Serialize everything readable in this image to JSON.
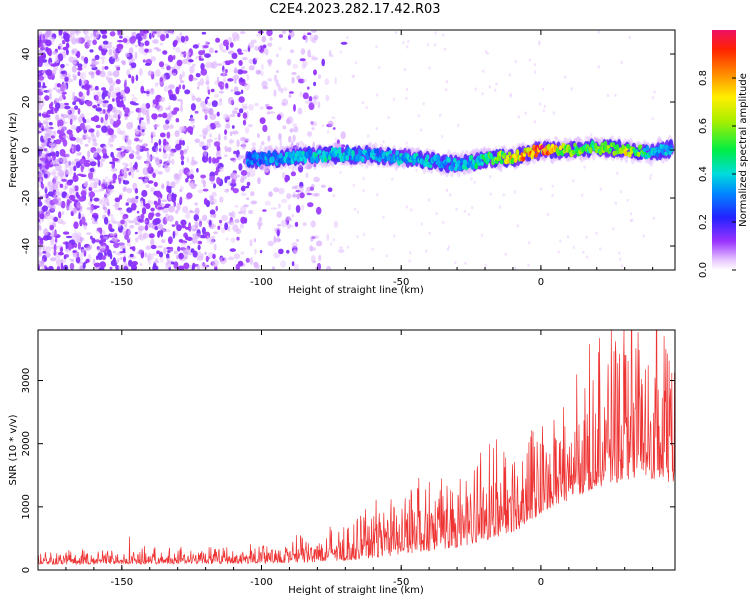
{
  "title": "C2E4.2023.282.17.42.R03",
  "chart_data": [
    {
      "type": "heatmap",
      "xlabel": "Height of straight line (km)",
      "ylabel": "Frequency (Hz)",
      "xlim": [
        -180,
        48
      ],
      "ylim": [
        -50,
        50
      ],
      "xticks": [
        -150,
        -100,
        -50,
        0
      ],
      "yticks": [
        -40,
        -20,
        0,
        20,
        40
      ],
      "colorbar": {
        "label": "Normalized spectral amplitude",
        "range": [
          0.0,
          1.0
        ],
        "ticks": [
          "0.0",
          "0.2",
          "0.4",
          "0.6",
          "0.8"
        ],
        "tick_values": [
          0.0,
          0.2,
          0.4,
          0.6,
          0.8
        ]
      },
      "noise_region_x": [
        -180,
        -78
      ],
      "noise_amplitude": 0.1,
      "ridge": [
        {
          "x": -105,
          "y": -4,
          "a": 0.3
        },
        {
          "x": -90,
          "y": -3,
          "a": 0.35
        },
        {
          "x": -75,
          "y": -2,
          "a": 0.4
        },
        {
          "x": -60,
          "y": -2,
          "a": 0.35
        },
        {
          "x": -45,
          "y": -4,
          "a": 0.38
        },
        {
          "x": -30,
          "y": -6,
          "a": 0.35
        },
        {
          "x": -20,
          "y": -4,
          "a": 0.45
        },
        {
          "x": -10,
          "y": -3,
          "a": 0.7
        },
        {
          "x": 0,
          "y": 0,
          "a": 0.9
        },
        {
          "x": 10,
          "y": 0,
          "a": 0.55
        },
        {
          "x": 20,
          "y": 1,
          "a": 0.5
        },
        {
          "x": 30,
          "y": 0,
          "a": 0.65
        },
        {
          "x": 40,
          "y": -1,
          "a": 0.4
        },
        {
          "x": 47,
          "y": 1,
          "a": 0.35
        }
      ]
    },
    {
      "type": "line",
      "xlabel": "Height of straight line (km)",
      "ylabel": "SNR (10 * v/v)",
      "xlim": [
        -180,
        48
      ],
      "ylim": [
        0,
        3800
      ],
      "xticks": [
        -150,
        -100,
        -50,
        0
      ],
      "yticks": [
        0,
        1000,
        2000,
        3000
      ],
      "color": "#ee3333",
      "envelope": [
        {
          "x": -180,
          "base": 130,
          "amp": 120
        },
        {
          "x": -110,
          "base": 150,
          "amp": 140
        },
        {
          "x": -90,
          "base": 180,
          "amp": 200
        },
        {
          "x": -70,
          "base": 250,
          "amp": 300
        },
        {
          "x": -50,
          "base": 450,
          "amp": 600
        },
        {
          "x": -30,
          "base": 600,
          "amp": 700
        },
        {
          "x": -10,
          "base": 900,
          "amp": 900
        },
        {
          "x": 5,
          "base": 1300,
          "amp": 800
        },
        {
          "x": 20,
          "base": 1700,
          "amp": 1200
        },
        {
          "x": 35,
          "base": 2000,
          "amp": 1500
        },
        {
          "x": 48,
          "base": 1900,
          "amp": 1500
        }
      ]
    }
  ]
}
